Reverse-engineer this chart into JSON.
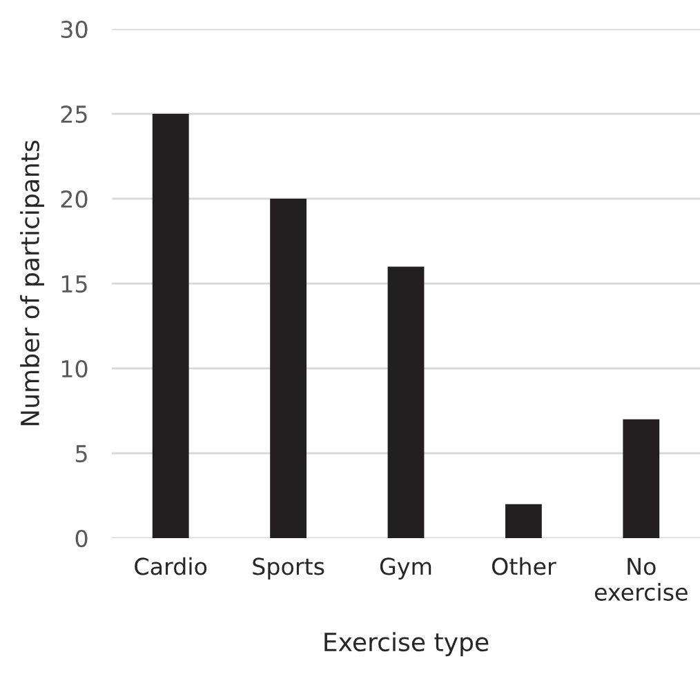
{
  "chart_data": {
    "type": "bar",
    "xlabel": "Exercise type",
    "ylabel": "Number of participants",
    "categories": [
      "Cardio",
      "Sports",
      "Gym",
      "Other",
      "No\nexercise"
    ],
    "values": [
      25,
      20,
      16,
      2,
      7
    ],
    "color": "#231f20",
    "ylim": [
      0,
      30
    ],
    "yticks": [
      0,
      5,
      10,
      15,
      20,
      25,
      30
    ],
    "grid": "y",
    "legend": false
  }
}
